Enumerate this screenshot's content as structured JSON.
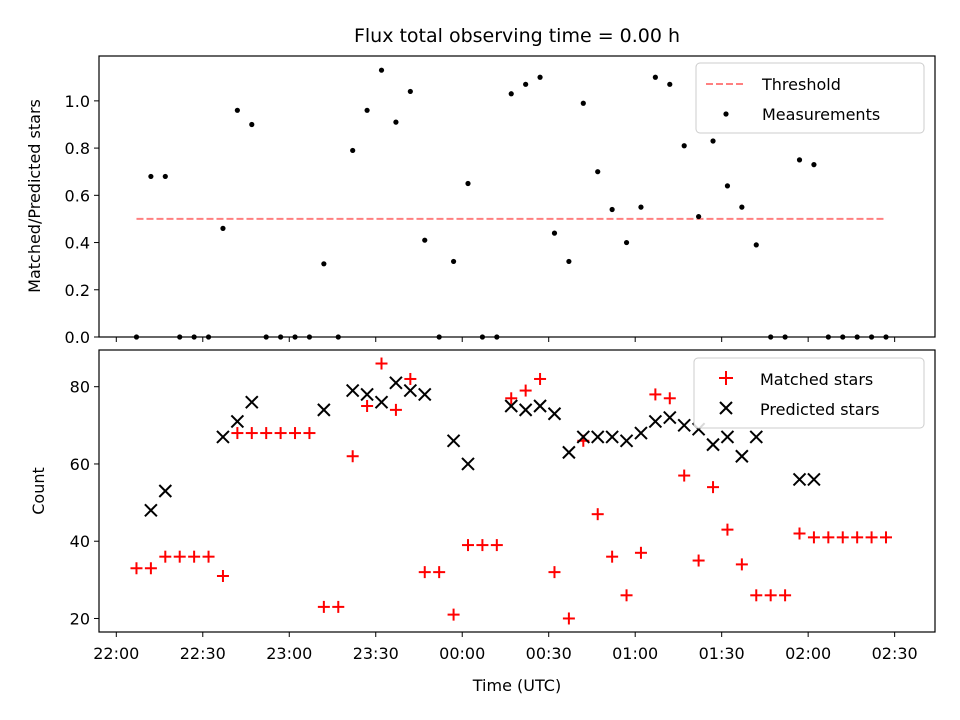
{
  "chart_data": [
    {
      "type": "scatter",
      "title": "Flux total observing time = 0.00 h",
      "xlabel": "",
      "ylabel": "Matched/Predicted stars",
      "xlim_minutes_from_2200": [
        -6,
        284
      ],
      "ylim": [
        0,
        1.19
      ],
      "yticks": [
        0.0,
        0.2,
        0.4,
        0.6,
        0.8,
        1.0
      ],
      "ytick_labels": [
        "0.0",
        "0.2",
        "0.4",
        "0.6",
        "0.8",
        "1.0"
      ],
      "legend_position": "top-right",
      "threshold": {
        "name": "Threshold",
        "value": 0.5,
        "color": "#ff8080",
        "x_range": [
          "22:07",
          "02:27"
        ]
      },
      "series": [
        {
          "name": "Measurements",
          "color": "#000000",
          "points": [
            [
              "22:07",
              0.0
            ],
            [
              "22:12",
              0.68
            ],
            [
              "22:17",
              0.68
            ],
            [
              "22:22",
              0.0
            ],
            [
              "22:27",
              0.0
            ],
            [
              "22:32",
              0.0
            ],
            [
              "22:37",
              0.46
            ],
            [
              "22:42",
              0.96
            ],
            [
              "22:47",
              0.9
            ],
            [
              "22:52",
              0.0
            ],
            [
              "22:57",
              0.0
            ],
            [
              "23:02",
              0.0
            ],
            [
              "23:07",
              0.0
            ],
            [
              "23:12",
              0.31
            ],
            [
              "23:17",
              0.0
            ],
            [
              "23:22",
              0.79
            ],
            [
              "23:27",
              0.96
            ],
            [
              "23:32",
              1.13
            ],
            [
              "23:37",
              0.91
            ],
            [
              "23:42",
              1.04
            ],
            [
              "23:47",
              0.41
            ],
            [
              "23:52",
              0.0
            ],
            [
              "23:57",
              0.32
            ],
            [
              "00:02",
              0.65
            ],
            [
              "00:07",
              0.0
            ],
            [
              "00:12",
              0.0
            ],
            [
              "00:17",
              1.03
            ],
            [
              "00:22",
              1.07
            ],
            [
              "00:27",
              1.1
            ],
            [
              "00:32",
              0.44
            ],
            [
              "00:37",
              0.32
            ],
            [
              "00:42",
              0.99
            ],
            [
              "00:47",
              0.7
            ],
            [
              "00:52",
              0.54
            ],
            [
              "00:57",
              0.4
            ],
            [
              "01:02",
              0.55
            ],
            [
              "01:07",
              1.1
            ],
            [
              "01:12",
              1.07
            ],
            [
              "01:17",
              0.81
            ],
            [
              "01:22",
              0.51
            ],
            [
              "01:27",
              0.83
            ],
            [
              "01:32",
              0.64
            ],
            [
              "01:37",
              0.55
            ],
            [
              "01:42",
              0.39
            ],
            [
              "01:47",
              0.0
            ],
            [
              "01:52",
              0.0
            ],
            [
              "01:57",
              0.75
            ],
            [
              "02:02",
              0.73
            ],
            [
              "02:07",
              0.0
            ],
            [
              "02:12",
              0.0
            ],
            [
              "02:17",
              0.0
            ],
            [
              "02:22",
              0.0
            ],
            [
              "02:27",
              0.0
            ]
          ]
        }
      ]
    },
    {
      "type": "scatter",
      "title": "",
      "xlabel": "Time (UTC)",
      "ylabel": "Count",
      "xlim_minutes_from_2200": [
        -6,
        284
      ],
      "xticks": [
        "22:00",
        "22:30",
        "23:00",
        "23:30",
        "00:00",
        "00:30",
        "01:00",
        "01:30",
        "02:00",
        "02:30"
      ],
      "ylim": [
        16.5,
        89.5
      ],
      "yticks": [
        20,
        40,
        60,
        80
      ],
      "ytick_labels": [
        "20",
        "40",
        "60",
        "80"
      ],
      "legend_position": "top-right",
      "series": [
        {
          "name": "Matched stars",
          "color": "#ff0000",
          "marker": "plus",
          "points": [
            [
              "22:07",
              33
            ],
            [
              "22:12",
              33
            ],
            [
              "22:17",
              36
            ],
            [
              "22:22",
              36
            ],
            [
              "22:27",
              36
            ],
            [
              "22:32",
              36
            ],
            [
              "22:37",
              31
            ],
            [
              "22:42",
              68
            ],
            [
              "22:47",
              68
            ],
            [
              "22:52",
              68
            ],
            [
              "22:57",
              68
            ],
            [
              "23:02",
              68
            ],
            [
              "23:07",
              68
            ],
            [
              "23:12",
              23
            ],
            [
              "23:17",
              23
            ],
            [
              "23:22",
              62
            ],
            [
              "23:27",
              75
            ],
            [
              "23:32",
              86
            ],
            [
              "23:37",
              74
            ],
            [
              "23:42",
              82
            ],
            [
              "23:47",
              32
            ],
            [
              "23:52",
              32
            ],
            [
              "23:57",
              21
            ],
            [
              "00:02",
              39
            ],
            [
              "00:07",
              39
            ],
            [
              "00:12",
              39
            ],
            [
              "00:17",
              77
            ],
            [
              "00:22",
              79
            ],
            [
              "00:27",
              82
            ],
            [
              "00:32",
              32
            ],
            [
              "00:37",
              20
            ],
            [
              "00:42",
              66
            ],
            [
              "00:47",
              47
            ],
            [
              "00:52",
              36
            ],
            [
              "00:57",
              26
            ],
            [
              "01:02",
              37
            ],
            [
              "01:07",
              78
            ],
            [
              "01:12",
              77
            ],
            [
              "01:17",
              57
            ],
            [
              "01:22",
              35
            ],
            [
              "01:27",
              54
            ],
            [
              "01:32",
              43
            ],
            [
              "01:37",
              34
            ],
            [
              "01:42",
              26
            ],
            [
              "01:47",
              26
            ],
            [
              "01:52",
              26
            ],
            [
              "01:57",
              42
            ],
            [
              "02:02",
              41
            ],
            [
              "02:07",
              41
            ],
            [
              "02:12",
              41
            ],
            [
              "02:17",
              41
            ],
            [
              "02:22",
              41
            ],
            [
              "02:27",
              41
            ]
          ]
        },
        {
          "name": "Predicted stars",
          "color": "#000000",
          "marker": "x",
          "points": [
            [
              "22:12",
              48
            ],
            [
              "22:17",
              53
            ],
            [
              "22:37",
              67
            ],
            [
              "22:42",
              71
            ],
            [
              "22:47",
              76
            ],
            [
              "23:12",
              74
            ],
            [
              "23:22",
              79
            ],
            [
              "23:27",
              78
            ],
            [
              "23:32",
              76
            ],
            [
              "23:37",
              81
            ],
            [
              "23:42",
              79
            ],
            [
              "23:47",
              78
            ],
            [
              "23:57",
              66
            ],
            [
              "00:02",
              60
            ],
            [
              "00:17",
              75
            ],
            [
              "00:22",
              74
            ],
            [
              "00:27",
              75
            ],
            [
              "00:32",
              73
            ],
            [
              "00:37",
              63
            ],
            [
              "00:42",
              67
            ],
            [
              "00:47",
              67
            ],
            [
              "00:52",
              67
            ],
            [
              "00:57",
              66
            ],
            [
              "01:02",
              68
            ],
            [
              "01:07",
              71
            ],
            [
              "01:12",
              72
            ],
            [
              "01:17",
              70
            ],
            [
              "01:22",
              69
            ],
            [
              "01:27",
              65
            ],
            [
              "01:32",
              67
            ],
            [
              "01:37",
              62
            ],
            [
              "01:42",
              67
            ],
            [
              "01:57",
              56
            ],
            [
              "02:02",
              56
            ]
          ]
        }
      ]
    }
  ]
}
